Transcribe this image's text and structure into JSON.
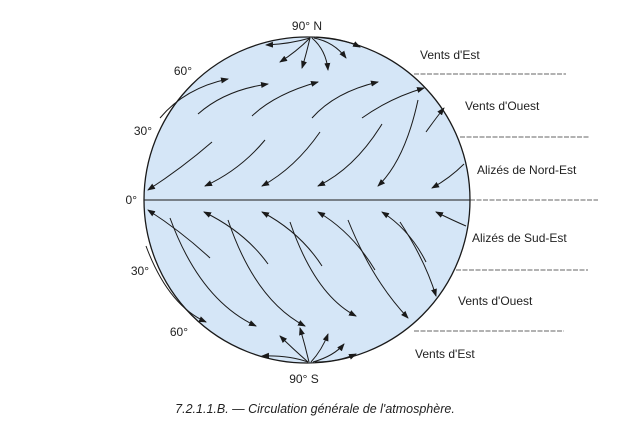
{
  "poles": {
    "north": "90° N",
    "south": "90° S"
  },
  "latitudes": {
    "n60": "60°",
    "n30": "30°",
    "equator": "0°",
    "s30": "30°",
    "s60": "60°"
  },
  "zones": {
    "vents_est_nord": "Vents d'Est",
    "vents_ouest_nord": "Vents d'Ouest",
    "alizes_nord_est": "Alizés de Nord-Est",
    "alizes_sud_est": "Alizés de Sud-Est",
    "vents_ouest_sud": "Vents d'Ouest",
    "vents_est_sud": "Vents d'Est"
  },
  "caption": "7.2.1.1.B. — Circulation générale de l'atmosphère.",
  "colors": {
    "globe_fill": "#d5e6f7",
    "outline": "#1a1a1a"
  }
}
